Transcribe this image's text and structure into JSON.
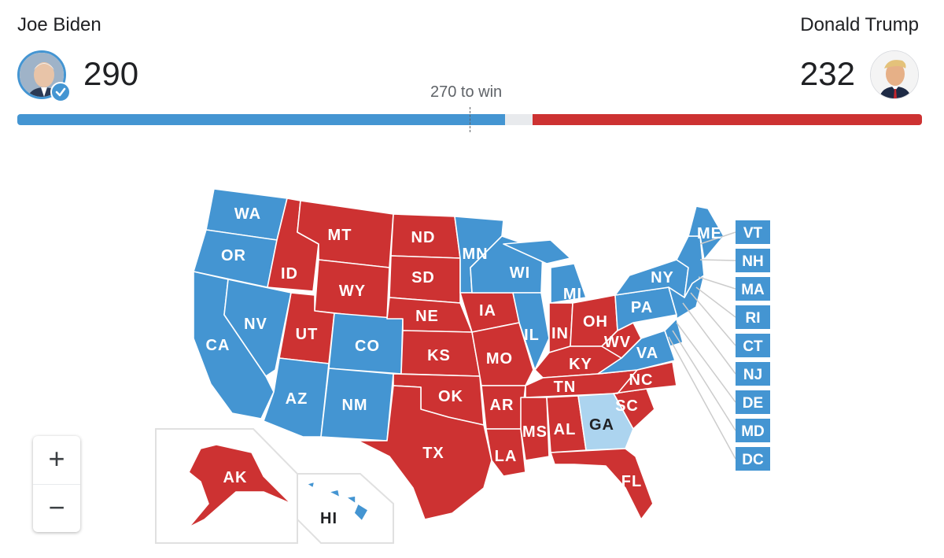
{
  "candidates": {
    "dem": {
      "name": "Joe Biden",
      "votes": "290"
    },
    "rep": {
      "name": "Donald Trump",
      "votes": "232"
    }
  },
  "threshold_label": "270 to win",
  "colors": {
    "dem": "#4495d2",
    "rep": "#cd3232",
    "tossup": "#acd4ef",
    "bar_gap": "#e8eaed"
  },
  "zoom": {
    "in": "+",
    "out": "−"
  },
  "states": {
    "WA": "WA",
    "OR": "OR",
    "CA": "CA",
    "ID": "ID",
    "NV": "NV",
    "MT": "MT",
    "WY": "WY",
    "UT": "UT",
    "AZ": "AZ",
    "CO": "CO",
    "NM": "NM",
    "ND": "ND",
    "SD": "SD",
    "NE": "NE",
    "KS": "KS",
    "OK": "OK",
    "TX": "TX",
    "MN": "MN",
    "IA": "IA",
    "MO": "MO",
    "AR": "AR",
    "LA": "LA",
    "WI": "WI",
    "IL": "IL",
    "MI": "MI",
    "IN": "IN",
    "OH": "OH",
    "KY": "KY",
    "TN": "TN",
    "MS": "MS",
    "AL": "AL",
    "GA": "GA",
    "FL": "FL",
    "SC": "SC",
    "NC": "NC",
    "VA": "VA",
    "WV": "WV",
    "PA": "PA",
    "NY": "NY",
    "ME": "ME",
    "AK": "AK",
    "HI": "HI"
  },
  "small_states": [
    "VT",
    "NH",
    "MA",
    "RI",
    "CT",
    "NJ",
    "DE",
    "MD",
    "DC"
  ]
}
